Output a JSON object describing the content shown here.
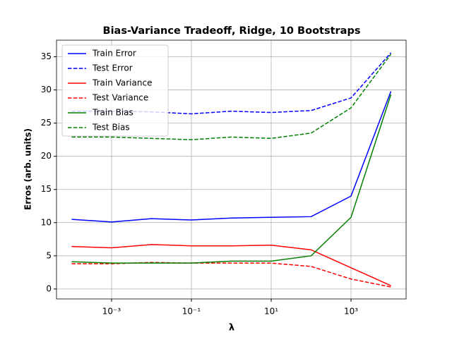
{
  "chart_data": {
    "type": "line",
    "title": "Bias-Variance Tradeoff, Ridge, 10 Bootstraps",
    "x_label": "λ",
    "y_label": "Erros (arb. units)",
    "x": [
      0.0001,
      0.001,
      0.01,
      0.1,
      1,
      10,
      100,
      1000,
      10000
    ],
    "series": [
      {
        "name": "Train Error",
        "color": "#0000ff",
        "style": "solid",
        "values": [
          10.5,
          10.1,
          10.6,
          10.4,
          10.7,
          10.8,
          10.9,
          14.0,
          29.8
        ]
      },
      {
        "name": "Test Error",
        "color": "#0000ff",
        "style": "dashed",
        "values": [
          26.8,
          26.8,
          26.7,
          26.4,
          26.8,
          26.6,
          26.9,
          28.8,
          35.6
        ]
      },
      {
        "name": "Train Variance",
        "color": "#ff0000",
        "style": "solid",
        "values": [
          6.4,
          6.2,
          6.7,
          6.5,
          6.5,
          6.6,
          5.9,
          3.2,
          0.5
        ]
      },
      {
        "name": "Test Variance",
        "color": "#ff0000",
        "style": "dashed",
        "values": [
          3.8,
          3.8,
          4.0,
          3.9,
          3.9,
          3.9,
          3.4,
          1.5,
          0.3
        ]
      },
      {
        "name": "Train Bias",
        "color": "#008000",
        "style": "solid",
        "values": [
          4.1,
          3.9,
          3.9,
          3.9,
          4.2,
          4.2,
          5.0,
          10.8,
          29.3
        ]
      },
      {
        "name": "Test Bias",
        "color": "#008000",
        "style": "dashed",
        "values": [
          22.9,
          22.9,
          22.7,
          22.5,
          22.9,
          22.7,
          23.5,
          27.3,
          35.4
        ]
      }
    ],
    "xscale": "log",
    "xlim": [
      4.17e-05,
      23988
    ],
    "ylim": [
      -1.5,
      37.5
    ],
    "xticks": [
      {
        "value": 0.001,
        "label": "10⁻³"
      },
      {
        "value": 0.1,
        "label": "10⁻¹"
      },
      {
        "value": 10,
        "label": "10¹"
      },
      {
        "value": 1000,
        "label": "10³"
      }
    ],
    "yticks": [
      0,
      5,
      10,
      15,
      20,
      25,
      30,
      35
    ],
    "grid": true,
    "legend": "upper-left"
  }
}
